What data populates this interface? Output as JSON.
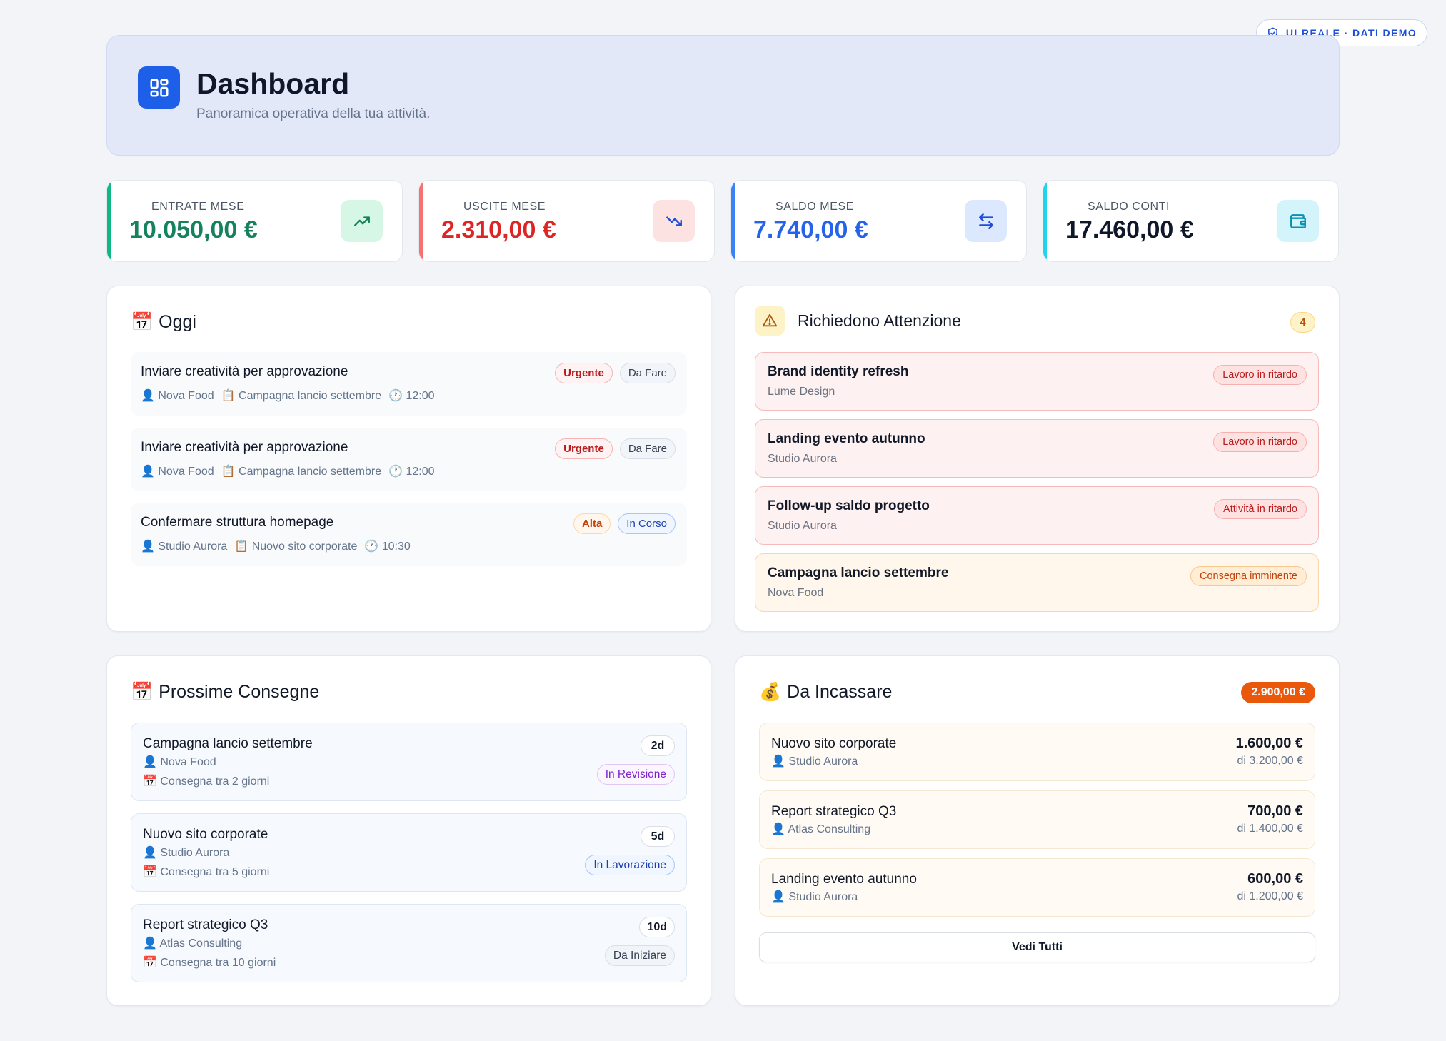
{
  "demo_badge": {
    "label": "UI REALE · DATI DEMO"
  },
  "header": {
    "title": "Dashboard",
    "subtitle": "Panoramica operativa della tua attività."
  },
  "stats": [
    {
      "label": "ENTRATE MESE",
      "value": "10.050,00 €",
      "accent": "#16825d",
      "tint": "#d7f7e6",
      "icon": "trending-up-icon"
    },
    {
      "label": "USCITE MESE",
      "value": "2.310,00 €",
      "accent": "#dc2626",
      "tint": "#fde2e2",
      "icon": "trending-down-icon"
    },
    {
      "label": "SALDO MESE",
      "value": "7.740,00 €",
      "accent": "#2563eb",
      "tint": "#dbe8fd",
      "icon": "transfer-arrows-icon"
    },
    {
      "label": "SALDO CONTI",
      "value": "17.460,00 €",
      "accent": "#0f172a",
      "tint": "#d3f4fa",
      "icon": "wallet-icon"
    }
  ],
  "stat_accent_bars": [
    "#10b981",
    "#f87171",
    "#3b82f6",
    "#22d3ee"
  ],
  "today": {
    "title": "Oggi",
    "items": [
      {
        "title": "Inviare creatività per approvazione",
        "client": "Nova Food",
        "project": "Campagna lancio settembre",
        "time": "12:00",
        "priority": "Urgente",
        "status": "Da Fare"
      },
      {
        "title": "Inviare creatività per approvazione",
        "client": "Nova Food",
        "project": "Campagna lancio settembre",
        "time": "12:00",
        "priority": "Urgente",
        "status": "Da Fare"
      },
      {
        "title": "Confermare struttura homepage",
        "client": "Studio Aurora",
        "project": "Nuovo sito corporate",
        "time": "10:30",
        "priority": "Alta",
        "status": "In Corso"
      }
    ]
  },
  "attention": {
    "title": "Richiedono Attenzione",
    "count": "4",
    "items": [
      {
        "title": "Brand identity refresh",
        "sub": "Lume Design",
        "badge": "Lavoro in ritardo",
        "tone": "red"
      },
      {
        "title": "Landing evento autunno",
        "sub": "Studio Aurora",
        "badge": "Lavoro in ritardo",
        "tone": "red"
      },
      {
        "title": "Follow-up saldo progetto",
        "sub": "Studio Aurora",
        "badge": "Attività in ritardo",
        "tone": "red"
      },
      {
        "title": "Campagna lancio settembre",
        "sub": "Nova Food",
        "badge": "Consegna imminente",
        "tone": "orange"
      }
    ]
  },
  "deliveries": {
    "title": "Prossime Consegne",
    "items": [
      {
        "title": "Campagna lancio settembre",
        "client": "Nova Food",
        "when": "Consegna tra 2 giorni",
        "days": "2d",
        "status": "In Revisione"
      },
      {
        "title": "Nuovo sito corporate",
        "client": "Studio Aurora",
        "when": "Consegna tra 5 giorni",
        "days": "5d",
        "status": "In Lavorazione"
      },
      {
        "title": "Report strategico Q3",
        "client": "Atlas Consulting",
        "when": "Consegna tra 10 giorni",
        "days": "10d",
        "status": "Da Iniziare"
      }
    ]
  },
  "receivables": {
    "title": "Da Incassare",
    "total": "2.900,00 €",
    "see_all": "Vedi Tutti",
    "items": [
      {
        "title": "Nuovo sito corporate",
        "client": "Studio Aurora",
        "amount": "1.600,00 €",
        "of": "di 3.200,00 €"
      },
      {
        "title": "Report strategico Q3",
        "client": "Atlas Consulting",
        "amount": "700,00 €",
        "of": "di 1.400,00 €"
      },
      {
        "title": "Landing evento autunno",
        "client": "Studio Aurora",
        "amount": "600,00 €",
        "of": "di 1.200,00 €"
      }
    ]
  }
}
